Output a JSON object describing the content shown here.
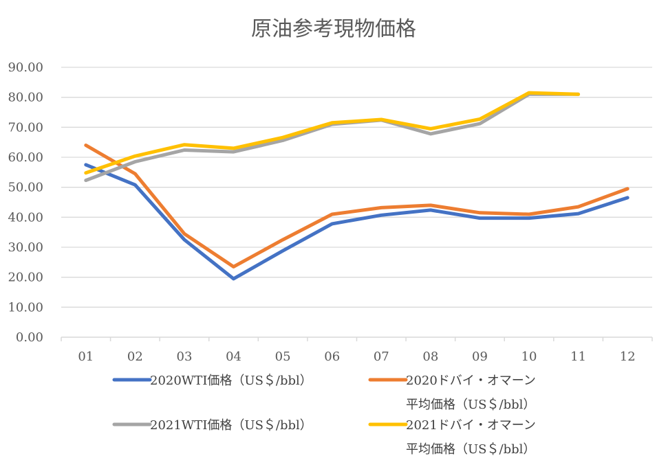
{
  "chart_data": {
    "type": "line",
    "title": "原油参考現物価格",
    "categories": [
      "01",
      "02",
      "03",
      "04",
      "05",
      "06",
      "07",
      "08",
      "09",
      "10",
      "11",
      "12"
    ],
    "ylim": [
      0,
      90
    ],
    "yticks": [
      "0.00",
      "10.00",
      "20.00",
      "30.00",
      "40.00",
      "50.00",
      "60.00",
      "70.00",
      "80.00",
      "90.00"
    ],
    "grid": true,
    "legend_position": "bottom",
    "series": [
      {
        "name": "2020WTI価格（US＄/bbl）",
        "legend_lines": [
          "2020WTI価格（US＄/bbl）"
        ],
        "color": "#4472C4",
        "values": [
          57.5,
          50.8,
          32.5,
          19.5,
          28.8,
          37.8,
          40.7,
          42.4,
          39.7,
          39.7,
          41.2,
          46.5
        ]
      },
      {
        "name": "2020ドバイ・オマーン平均価格（US＄/bbl）",
        "legend_lines": [
          "2020ドバイ・オマーン",
          "平均価格（US＄/bbl）"
        ],
        "color": "#ED7D31",
        "values": [
          64.0,
          54.5,
          34.5,
          23.5,
          32.5,
          41.0,
          43.2,
          44.0,
          41.5,
          41.0,
          43.5,
          49.5
        ]
      },
      {
        "name": "2021WTI価格（US＄/bbl）",
        "legend_lines": [
          "2021WTI価格（US＄/bbl）"
        ],
        "color": "#A5A5A5",
        "values": [
          52.3,
          58.5,
          62.4,
          61.8,
          65.6,
          71.0,
          72.4,
          67.8,
          71.2,
          81.0,
          81.0,
          null
        ]
      },
      {
        "name": "2021ドバイ・オマーン平均価格（US＄/bbl）",
        "legend_lines": [
          "2021ドバイ・オマーン",
          "平均価格（US＄/bbl）"
        ],
        "color": "#FFC000",
        "values": [
          54.8,
          60.4,
          64.2,
          63.0,
          66.6,
          71.5,
          72.6,
          69.5,
          72.7,
          81.5,
          81.0,
          null
        ]
      }
    ]
  }
}
